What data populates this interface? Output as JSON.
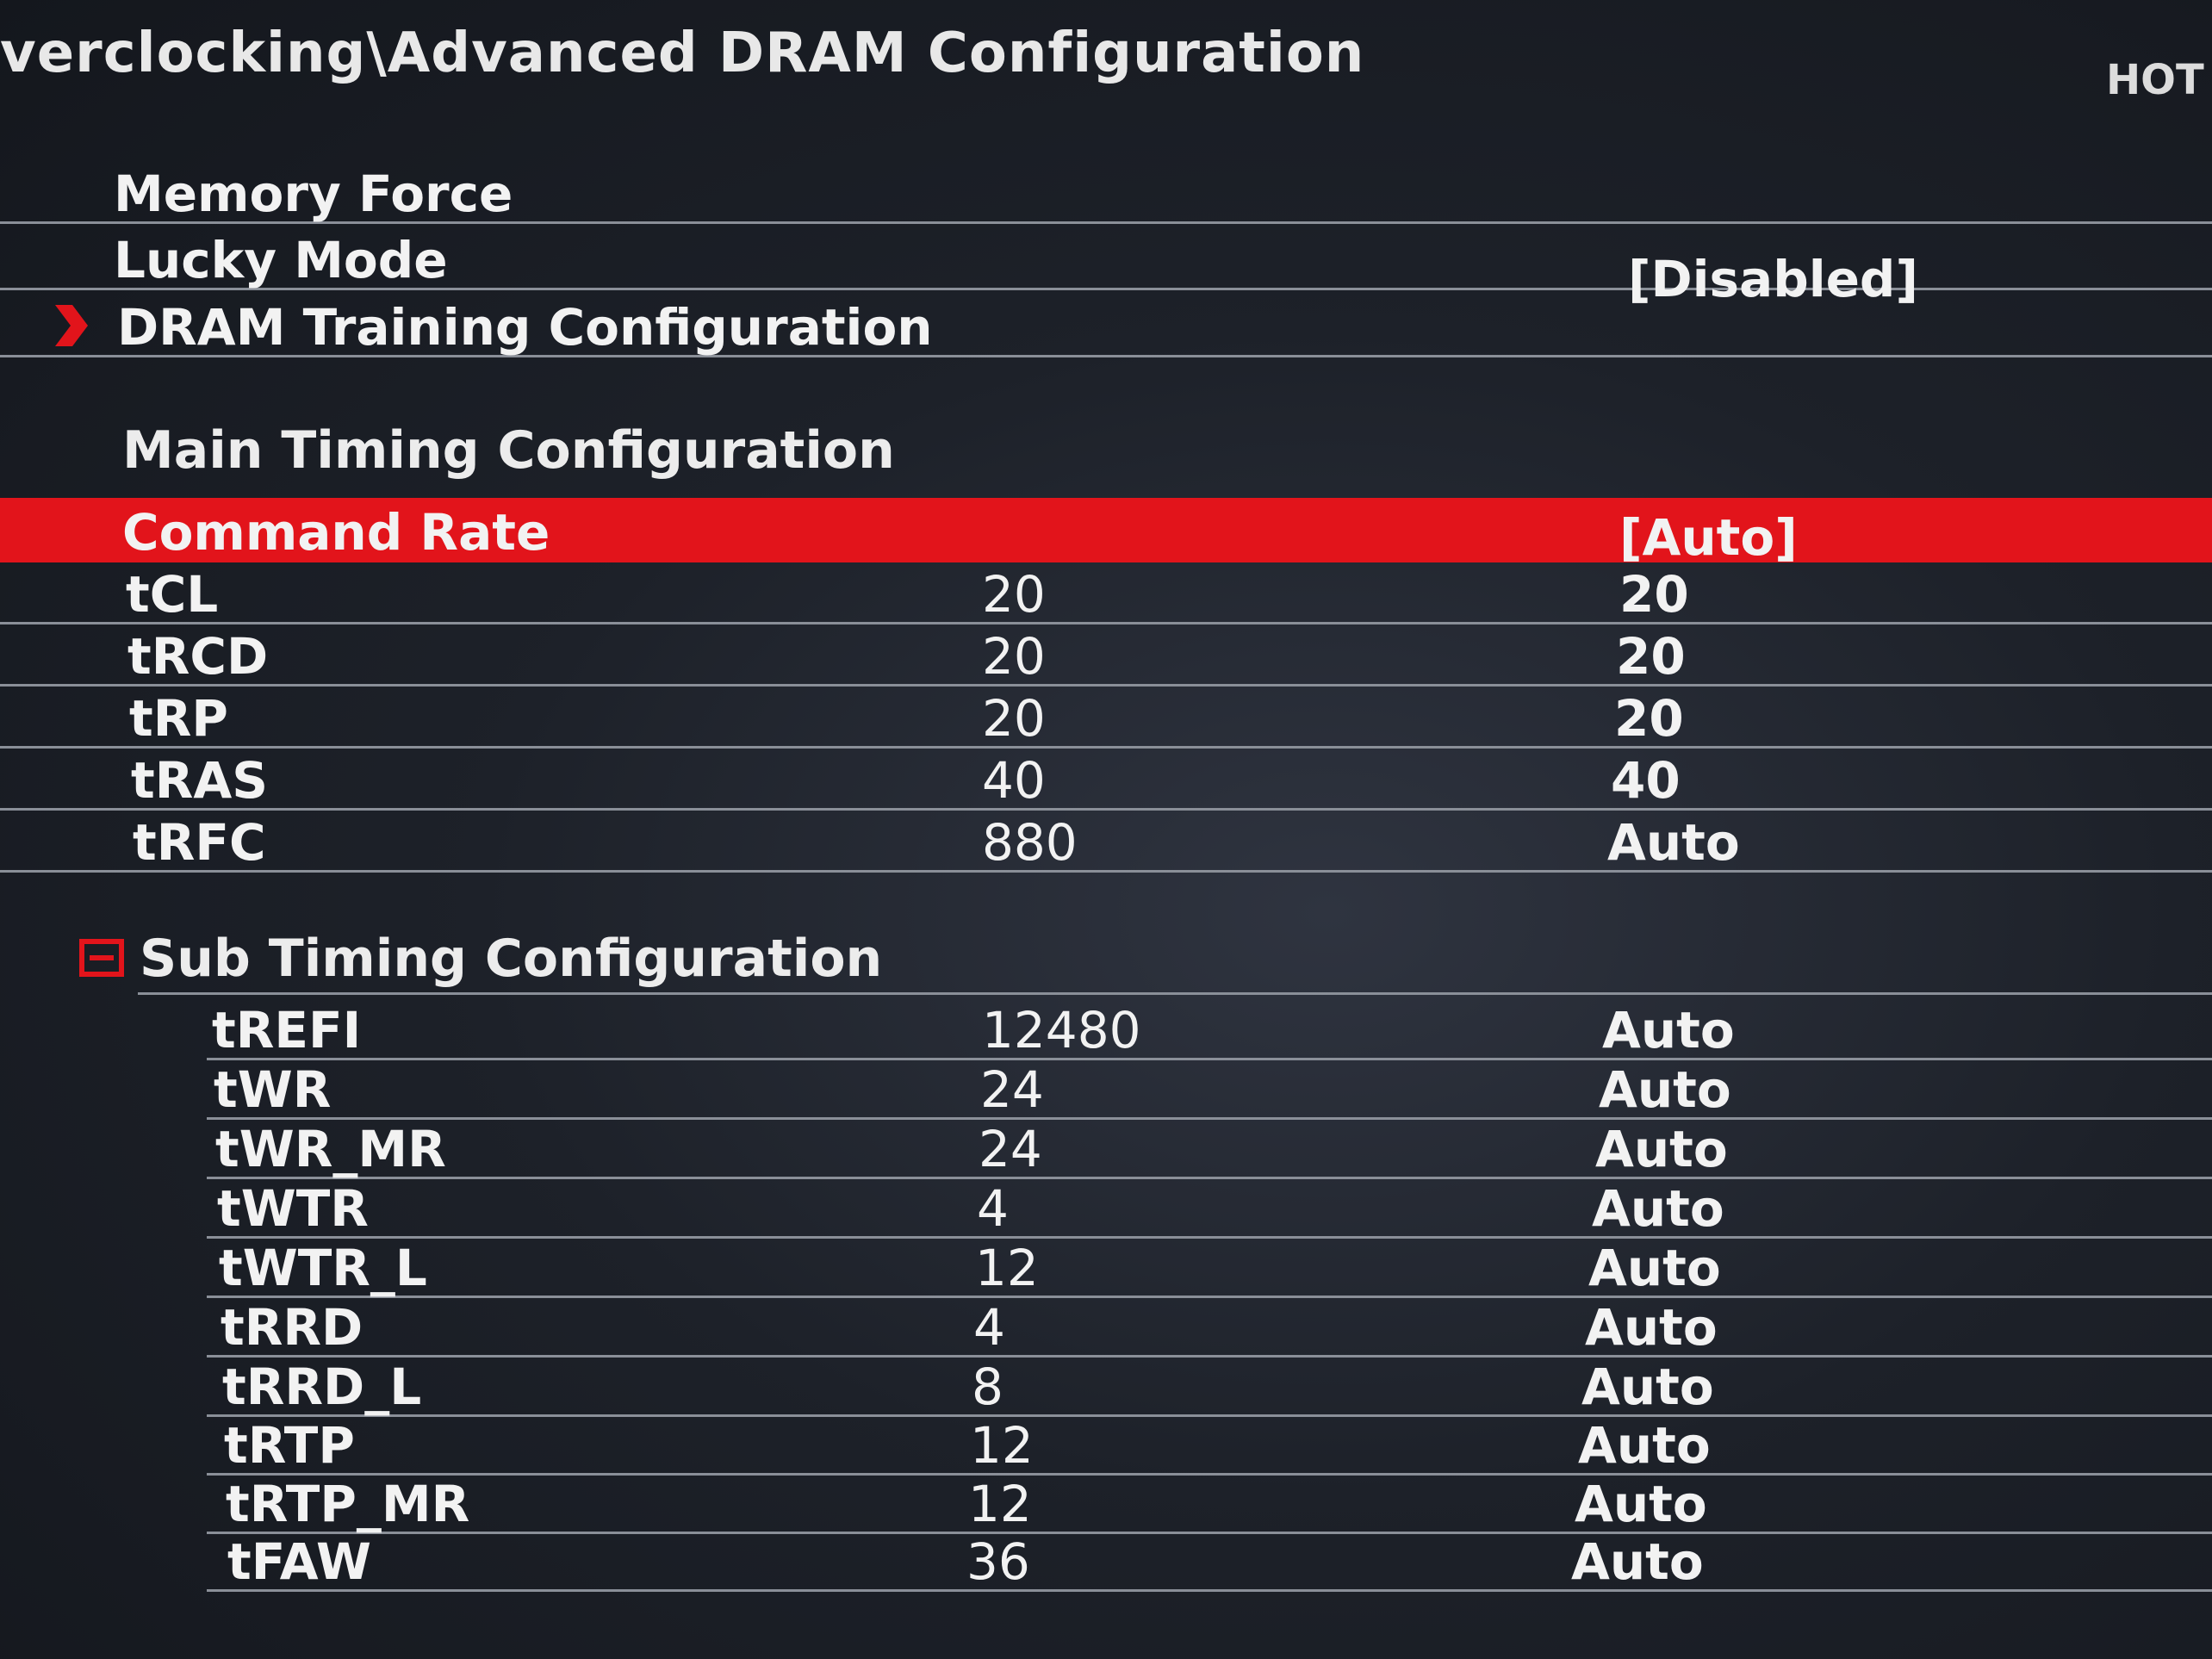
{
  "breadcrumb": "verclocking\\Advanced DRAM Configuration",
  "hotkey_label": "HOT",
  "menu": [
    {
      "label": "Memory Force",
      "value": ""
    },
    {
      "label": "Lucky Mode",
      "value": "[Disabled]"
    },
    {
      "label": "DRAM Training Configuration",
      "value": ""
    }
  ],
  "main_timing": {
    "title": "Main  Timing  Configuration",
    "rows": [
      {
        "name": "Command Rate",
        "current": "",
        "value": "[Auto]"
      },
      {
        "name": "tCL",
        "current": "20",
        "value": "20"
      },
      {
        "name": "tRCD",
        "current": "20",
        "value": "20"
      },
      {
        "name": "tRP",
        "current": "20",
        "value": "20"
      },
      {
        "name": "tRAS",
        "current": "40",
        "value": "40"
      },
      {
        "name": "tRFC",
        "current": "880",
        "value": "Auto"
      }
    ]
  },
  "sub_timing": {
    "title": "Sub Timing Configuration",
    "rows": [
      {
        "name": "tREFI",
        "current": "12480",
        "value": "Auto"
      },
      {
        "name": "tWR",
        "current": "24",
        "value": "Auto"
      },
      {
        "name": "tWR_MR",
        "current": "24",
        "value": "Auto"
      },
      {
        "name": "tWTR",
        "current": "4",
        "value": "Auto"
      },
      {
        "name": "tWTR_L",
        "current": "12",
        "value": "Auto"
      },
      {
        "name": "tRRD",
        "current": "4",
        "value": "Auto"
      },
      {
        "name": "tRRD_L",
        "current": "8",
        "value": "Auto"
      },
      {
        "name": "tRTP",
        "current": "12",
        "value": "Auto"
      },
      {
        "name": "tRTP_MR",
        "current": "12",
        "value": "Auto"
      },
      {
        "name": "tFAW",
        "current": "36",
        "value": "Auto"
      }
    ]
  },
  "colors": {
    "highlight": "#e2141b",
    "text": "#f2f2f2",
    "background": "#1d2129"
  }
}
